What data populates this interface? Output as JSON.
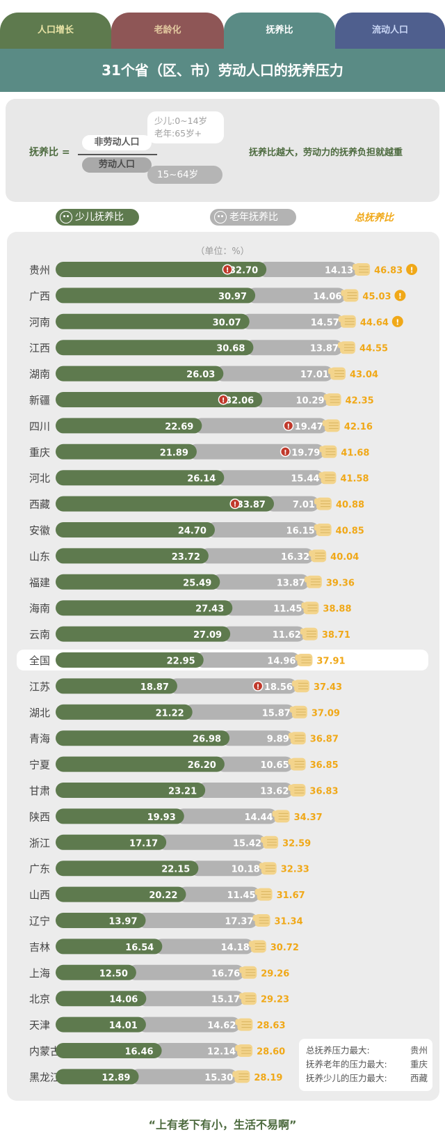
{
  "tabs": [
    {
      "label": "人口增长"
    },
    {
      "label": "老龄化"
    },
    {
      "label": "抚养比"
    },
    {
      "label": "流动人口"
    }
  ],
  "title": "31个省（区、市）劳动人口的抚养压力",
  "formula": {
    "label": "抚养比 =",
    "numerator": "非劳动人口",
    "denominator": "劳动人口",
    "child_age": "少儿:0~14岁",
    "old_age": "老年:65岁+",
    "working_age": "15~64岁",
    "description": "抚养比越大，劳动力的抚养负担就越重"
  },
  "legend": {
    "child": "少儿抚养比",
    "old": "老年抚养比",
    "total": "总抚养比"
  },
  "colors": {
    "child": "#5e7a4e",
    "old": "#b3b3b3",
    "total": "#f0a818",
    "alert": "#c0392b"
  },
  "chart_data": {
    "type": "bar",
    "stacked": true,
    "orientation": "horizontal",
    "unit_label": "（单位：%）",
    "categories": [
      "贵州",
      "广西",
      "河南",
      "江西",
      "湖南",
      "新疆",
      "四川",
      "重庆",
      "河北",
      "西藏",
      "安徽",
      "山东",
      "福建",
      "海南",
      "云南",
      "全国",
      "江苏",
      "湖北",
      "青海",
      "宁夏",
      "甘肃",
      "陕西",
      "浙江",
      "广东",
      "山西",
      "辽宁",
      "吉林",
      "上海",
      "北京",
      "天津",
      "内蒙古",
      "黑龙江"
    ],
    "series": [
      {
        "name": "少儿抚养比",
        "values": [
          32.7,
          30.97,
          30.07,
          30.68,
          26.03,
          32.06,
          22.69,
          21.89,
          26.14,
          33.87,
          24.7,
          23.72,
          25.49,
          27.43,
          27.09,
          22.95,
          18.87,
          21.22,
          26.98,
          26.2,
          23.21,
          19.93,
          17.17,
          22.15,
          20.22,
          13.97,
          16.54,
          12.5,
          14.06,
          14.01,
          16.46,
          12.89
        ]
      },
      {
        "name": "老年抚养比",
        "values": [
          14.13,
          14.06,
          14.57,
          13.87,
          17.01,
          10.29,
          19.47,
          19.79,
          15.44,
          7.01,
          16.15,
          16.32,
          13.87,
          11.45,
          11.62,
          14.96,
          18.56,
          15.87,
          9.89,
          10.65,
          13.62,
          14.44,
          15.42,
          10.18,
          11.45,
          17.37,
          14.18,
          16.76,
          15.17,
          14.62,
          12.14,
          15.3
        ]
      },
      {
        "name": "总抚养比",
        "values": [
          46.83,
          45.03,
          44.64,
          44.55,
          43.04,
          42.35,
          42.16,
          41.68,
          41.58,
          40.88,
          40.85,
          40.04,
          39.36,
          38.88,
          38.71,
          37.91,
          37.43,
          37.09,
          36.87,
          36.85,
          36.83,
          34.37,
          32.59,
          32.33,
          31.67,
          31.34,
          30.72,
          29.26,
          29.23,
          28.63,
          28.6,
          28.19
        ]
      }
    ],
    "highlighted_category": "全国",
    "alerts": {
      "total": [
        "贵州",
        "广西",
        "河南"
      ],
      "child": [
        "贵州",
        "新疆",
        "西藏"
      ],
      "old": [
        "四川",
        "重庆",
        "江苏"
      ]
    }
  },
  "extremes": [
    {
      "label": "总抚养压力最大:",
      "value": "贵州"
    },
    {
      "label": "抚养老年的压力最大:",
      "value": "重庆"
    },
    {
      "label": "抚养少儿的压力最大:",
      "value": "西藏"
    }
  ],
  "footer": "“上有老下有小，生活不易啊”"
}
